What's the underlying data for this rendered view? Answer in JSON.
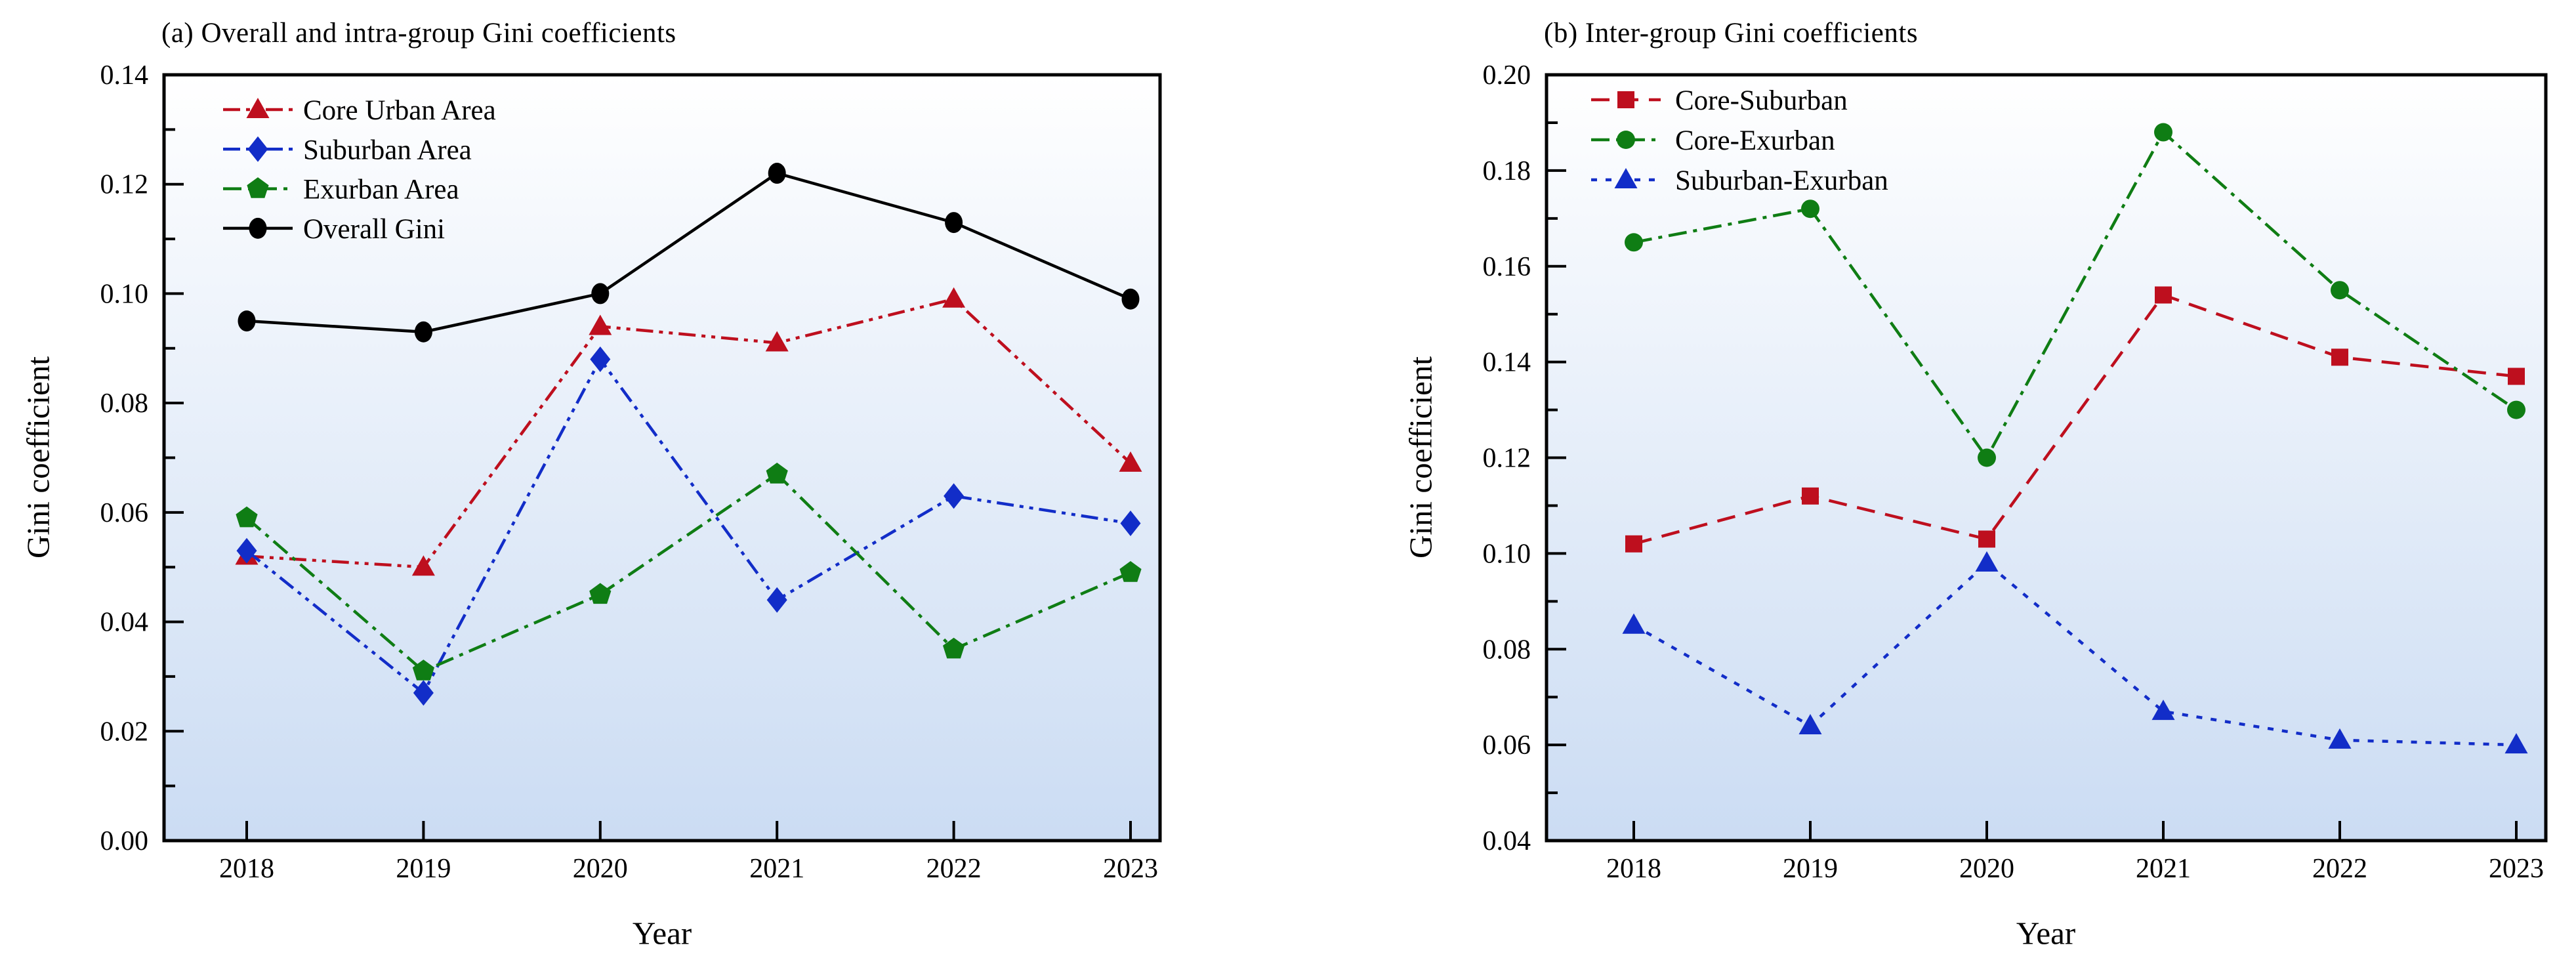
{
  "figure": {
    "background": "#ffffff",
    "plot_bg_gradient": {
      "top": "#ffffff",
      "bottom": "#cbdcf3"
    },
    "axis_color": "#000000"
  },
  "chart_data": [
    {
      "type": "line",
      "panel": "a",
      "title": "(a) Overall and intra-group Gini coefficients",
      "xlabel": "Year",
      "ylabel": "Gini coefficient",
      "x": [
        2018,
        2019,
        2020,
        2021,
        2022,
        2023
      ],
      "ylim": [
        0.0,
        0.14
      ],
      "yticks": [
        0.0,
        0.02,
        0.04,
        0.06,
        0.08,
        0.1,
        0.12,
        0.14
      ],
      "minor_tick_step": 0.01,
      "grid": false,
      "legend_position": "upper-left",
      "series": [
        {
          "name": "Core Urban Area",
          "color": "#be0f1e",
          "marker": "triangle",
          "linestyle": "dash-dot-dot",
          "values": [
            0.052,
            0.05,
            0.094,
            0.091,
            0.099,
            0.069
          ]
        },
        {
          "name": "Suburban Area",
          "color": "#122dc8",
          "marker": "diamond",
          "linestyle": "dash-dot-dot",
          "values": [
            0.053,
            0.027,
            0.088,
            0.044,
            0.063,
            0.058
          ]
        },
        {
          "name": "Exurban Area",
          "color": "#0f7d14",
          "marker": "pentagon",
          "linestyle": "dash-dot",
          "values": [
            0.059,
            0.031,
            0.045,
            0.067,
            0.035,
            0.049
          ]
        },
        {
          "name": "Overall Gini",
          "color": "#000000",
          "marker": "ellipse",
          "linestyle": "solid",
          "values": [
            0.095,
            0.093,
            0.1,
            0.122,
            0.113,
            0.099
          ]
        }
      ]
    },
    {
      "type": "line",
      "panel": "b",
      "title": "(b) Inter-group Gini coefficients",
      "xlabel": "Year",
      "ylabel": "Gini coefficient",
      "x": [
        2018,
        2019,
        2020,
        2021,
        2022,
        2023
      ],
      "ylim": [
        0.04,
        0.2
      ],
      "yticks": [
        0.04,
        0.06,
        0.08,
        0.1,
        0.12,
        0.14,
        0.16,
        0.18,
        0.2
      ],
      "minor_tick_step": 0.01,
      "grid": false,
      "legend_position": "upper-left",
      "series": [
        {
          "name": "Core-Suburban",
          "color": "#be0f1e",
          "marker": "square",
          "linestyle": "dashed",
          "values": [
            0.102,
            0.112,
            0.103,
            0.154,
            0.141,
            0.137
          ]
        },
        {
          "name": "Core-Exurban",
          "color": "#0f7d14",
          "marker": "circle",
          "linestyle": "dash-dot",
          "values": [
            0.165,
            0.172,
            0.12,
            0.188,
            0.155,
            0.13
          ]
        },
        {
          "name": "Suburban-Exurban",
          "color": "#122dc8",
          "marker": "triangle",
          "linestyle": "dotted",
          "values": [
            0.085,
            0.064,
            0.098,
            0.067,
            0.061,
            0.06
          ]
        }
      ]
    }
  ]
}
